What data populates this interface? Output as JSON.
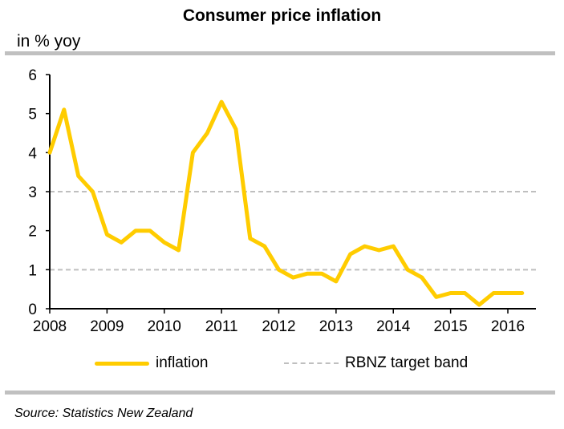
{
  "chart_data": {
    "type": "line",
    "title": "Consumer price inflation",
    "ylabel": "in % yoy",
    "xlabel": "",
    "ylim": [
      0,
      6
    ],
    "xlim": [
      2008,
      2016.35
    ],
    "yticks": [
      0,
      1,
      2,
      3,
      4,
      5,
      6
    ],
    "xticks": [
      2008,
      2009,
      2010,
      2011,
      2012,
      2013,
      2014,
      2015,
      2016
    ],
    "grid": false,
    "legend_position": "bottom",
    "series": [
      {
        "name": "inflation",
        "color": "#ffcc00",
        "style": "solid",
        "x": [
          2008.0,
          2008.25,
          2008.5,
          2008.75,
          2009.0,
          2009.25,
          2009.5,
          2009.75,
          2010.0,
          2010.25,
          2010.5,
          2010.75,
          2011.0,
          2011.25,
          2011.5,
          2011.75,
          2012.0,
          2012.25,
          2012.5,
          2012.75,
          2013.0,
          2013.25,
          2013.5,
          2013.75,
          2014.0,
          2014.25,
          2014.5,
          2014.75,
          2015.0,
          2015.25,
          2015.5,
          2015.75,
          2016.0,
          2016.25
        ],
        "values": [
          4.0,
          5.1,
          3.4,
          3.0,
          1.9,
          1.7,
          2.0,
          2.0,
          1.7,
          1.5,
          4.0,
          4.5,
          5.3,
          4.6,
          1.8,
          1.6,
          1.0,
          0.8,
          0.9,
          0.9,
          0.7,
          1.4,
          1.6,
          1.5,
          1.6,
          1.0,
          0.8,
          0.3,
          0.4,
          0.4,
          0.1,
          0.4,
          0.4,
          0.4
        ]
      },
      {
        "name": "RBNZ target band",
        "color": "#bfbfbf",
        "style": "dashed",
        "hlines": [
          1,
          3
        ]
      }
    ]
  },
  "source": "Source: Statistics New Zealand"
}
